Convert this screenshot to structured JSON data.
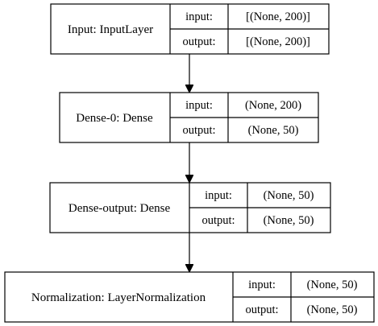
{
  "layers": [
    {
      "name": "Input: InputLayer",
      "input_label": "input:",
      "input_shape": "[(None, 200)]",
      "output_label": "output:",
      "output_shape": "[(None, 200)]"
    },
    {
      "name": "Dense-0: Dense",
      "input_label": "input:",
      "input_shape": "(None, 200)",
      "output_label": "output:",
      "output_shape": "(None, 50)"
    },
    {
      "name": "Dense-output: Dense",
      "input_label": "input:",
      "input_shape": "(None, 50)",
      "output_label": "output:",
      "output_shape": "(None, 50)"
    },
    {
      "name": "Normalization: LayerNormalization",
      "input_label": "input:",
      "input_shape": "(None, 50)",
      "output_label": "output:",
      "output_shape": "(None, 50)"
    }
  ]
}
